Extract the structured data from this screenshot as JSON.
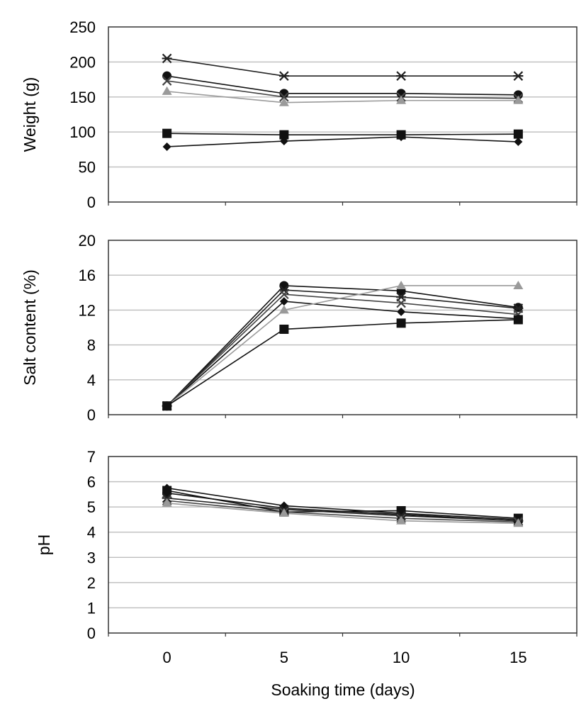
{
  "chart_data": [
    {
      "type": "line",
      "panel": "weight",
      "title": "",
      "xlabel": "",
      "ylabel": "Weight (g)",
      "x": [
        0,
        5,
        10,
        15
      ],
      "xlim": [
        -2.5,
        17.5
      ],
      "ylim": [
        0,
        250
      ],
      "yticks": [
        0,
        50,
        100,
        150,
        200,
        250
      ],
      "grid": true,
      "legend": "none",
      "series": [
        {
          "marker": "star",
          "color": "#222222",
          "values": [
            205,
            180,
            180,
            180
          ]
        },
        {
          "marker": "circle",
          "color": "#111111",
          "values": [
            180,
            155,
            155,
            153
          ]
        },
        {
          "marker": "cross",
          "color": "#444444",
          "values": [
            173,
            150,
            150,
            148
          ]
        },
        {
          "marker": "triangle",
          "color": "#9a9a9a",
          "values": [
            158,
            142,
            145,
            145
          ]
        },
        {
          "marker": "square",
          "color": "#111111",
          "values": [
            98,
            96,
            96,
            97
          ]
        },
        {
          "marker": "diamond",
          "color": "#111111",
          "values": [
            79,
            87,
            93,
            86
          ]
        }
      ]
    },
    {
      "type": "line",
      "panel": "salt",
      "title": "",
      "xlabel": "",
      "ylabel": "Salt content (%)",
      "x": [
        0,
        5,
        10,
        15
      ],
      "xlim": [
        -2.5,
        17.5
      ],
      "ylim": [
        0,
        20
      ],
      "yticks": [
        0,
        4,
        8,
        12,
        16,
        20
      ],
      "grid": true,
      "legend": "none",
      "series": [
        {
          "marker": "circle",
          "color": "#111111",
          "values": [
            1,
            14.8,
            14.2,
            12.3
          ]
        },
        {
          "marker": "star",
          "color": "#222222",
          "values": [
            1,
            14.3,
            13.5,
            12.2
          ]
        },
        {
          "marker": "cross",
          "color": "#444444",
          "values": [
            1,
            13.8,
            12.8,
            11.5
          ]
        },
        {
          "marker": "diamond",
          "color": "#111111",
          "values": [
            1,
            13.0,
            11.8,
            11.0
          ]
        },
        {
          "marker": "triangle",
          "color": "#9a9a9a",
          "values": [
            1,
            12.0,
            14.8,
            14.8
          ]
        },
        {
          "marker": "square",
          "color": "#111111",
          "values": [
            1,
            9.8,
            10.5,
            10.9
          ]
        }
      ]
    },
    {
      "type": "line",
      "panel": "ph",
      "title": "",
      "xlabel": "Soaking time (days)",
      "ylabel": "pH",
      "x": [
        0,
        5,
        10,
        15
      ],
      "xticks": [
        "0",
        "5",
        "10",
        "15"
      ],
      "xlim": [
        -2.5,
        17.5
      ],
      "ylim": [
        0,
        7
      ],
      "yticks": [
        0,
        1,
        2,
        3,
        4,
        5,
        6,
        7
      ],
      "grid": true,
      "legend": "none",
      "series": [
        {
          "marker": "diamond",
          "color": "#111111",
          "values": [
            5.75,
            5.05,
            4.75,
            4.5
          ]
        },
        {
          "marker": "circle",
          "color": "#111111",
          "values": [
            5.55,
            4.95,
            4.7,
            4.45
          ]
        },
        {
          "marker": "square",
          "color": "#111111",
          "values": [
            5.65,
            4.8,
            4.85,
            4.55
          ]
        },
        {
          "marker": "star",
          "color": "#222222",
          "values": [
            5.35,
            4.9,
            4.65,
            4.45
          ]
        },
        {
          "marker": "cross",
          "color": "#444444",
          "values": [
            5.25,
            4.8,
            4.55,
            4.4
          ]
        },
        {
          "marker": "triangle",
          "color": "#9a9a9a",
          "values": [
            5.15,
            4.75,
            4.45,
            4.35
          ]
        }
      ]
    }
  ]
}
